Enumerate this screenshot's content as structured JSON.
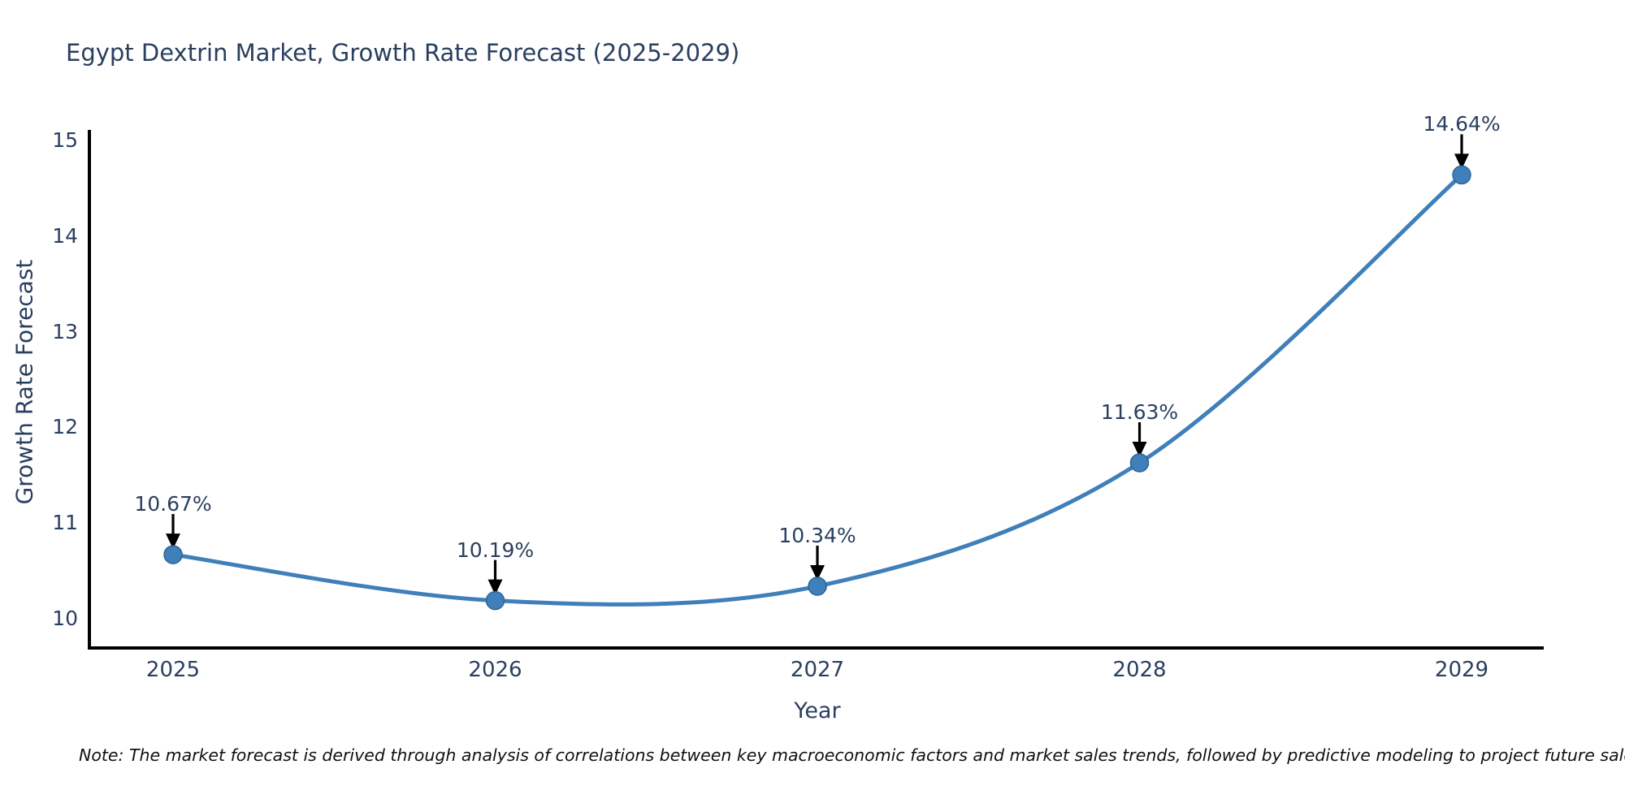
{
  "title": "Egypt Dextrin Market, Growth Rate Forecast (2025-2029)",
  "note": "Note: The market forecast is derived through analysis of correlations between key macroeconomic factors and market sales trends, followed by predictive modeling to project future sales.",
  "chart_data": {
    "type": "line",
    "title": "Egypt Dextrin Market, Growth Rate Forecast (2025-2029)",
    "xlabel": "Year",
    "ylabel": "Growth Rate Forecast",
    "categories": [
      "2025",
      "2026",
      "2027",
      "2028",
      "2029"
    ],
    "values": [
      10.67,
      10.19,
      10.34,
      11.63,
      14.64
    ],
    "point_labels": [
      "10.67%",
      "10.19%",
      "10.34%",
      "11.63%",
      "14.64%"
    ],
    "y_ticks": [
      10,
      11,
      12,
      13,
      14,
      15
    ],
    "ylim": [
      9.68,
      15.11
    ],
    "grid": false,
    "legend": "none",
    "line_color": "#3f7fba",
    "marker_edge_color": "#2e6496",
    "axis_color": "#000000",
    "text_color": "#2a3f5f",
    "annotation_arrow_color": "#000000"
  }
}
